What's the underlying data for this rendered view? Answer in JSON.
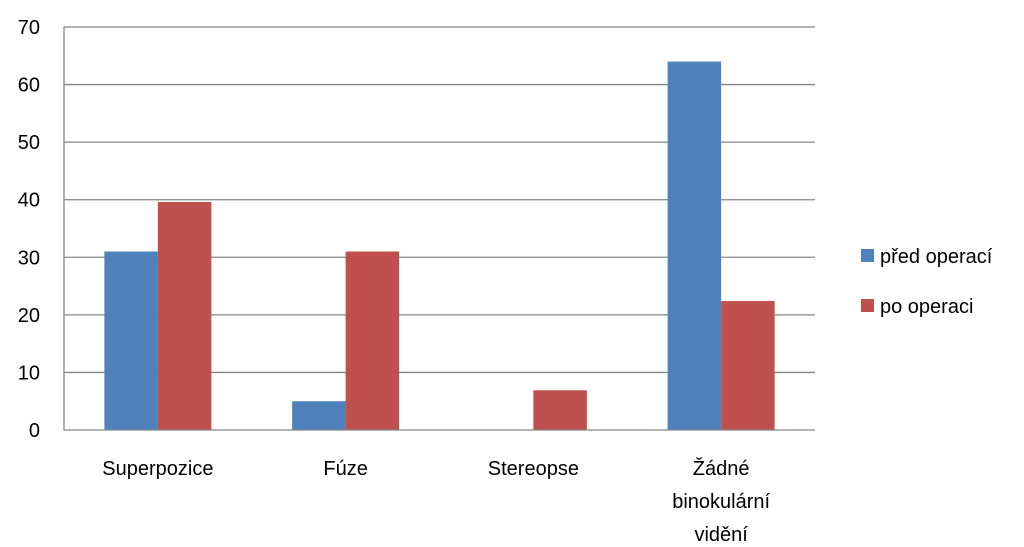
{
  "chart_data": {
    "type": "bar",
    "title": "",
    "xlabel": "",
    "ylabel": "",
    "ylim": [
      0,
      70
    ],
    "yticks": [
      0,
      10,
      20,
      30,
      40,
      50,
      60,
      70
    ],
    "grid": true,
    "legend_position": "right",
    "categories": [
      [
        "Superpozice"
      ],
      [
        "Fúze"
      ],
      [
        "Stereopse"
      ],
      [
        "Žádné",
        "binokulární",
        "vidění"
      ]
    ],
    "series": [
      {
        "name": "před operací",
        "color": "#4F81BD",
        "values": [
          31,
          5,
          0,
          64
        ]
      },
      {
        "name": "po operaci",
        "color": "#C0504D",
        "values": [
          39.6,
          31,
          6.9,
          22.4
        ]
      }
    ]
  }
}
